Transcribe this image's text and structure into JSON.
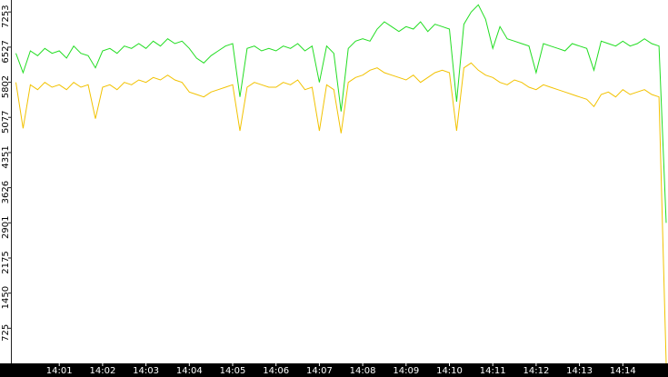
{
  "chart_data": {
    "type": "line",
    "categories": [
      null,
      null,
      null,
      null,
      null,
      null,
      "14:01",
      null,
      null,
      null,
      null,
      null,
      "14:02",
      null,
      null,
      null,
      null,
      null,
      "14:03",
      null,
      null,
      null,
      null,
      null,
      "14:04",
      null,
      null,
      null,
      null,
      null,
      "14:05",
      null,
      null,
      null,
      null,
      null,
      "14:06",
      null,
      null,
      null,
      null,
      null,
      "14:07",
      null,
      null,
      null,
      null,
      null,
      "14:08",
      null,
      null,
      null,
      null,
      null,
      "14:09",
      null,
      null,
      null,
      null,
      null,
      "14:10",
      null,
      null,
      null,
      null,
      null,
      "14:11",
      null,
      null,
      null,
      null,
      null,
      "14:12",
      null,
      null,
      null,
      null,
      null,
      "14:13",
      null,
      null,
      null,
      null,
      null,
      "14:14",
      null,
      null,
      null,
      null,
      null,
      null
    ],
    "series": [
      {
        "color": "#22dd22",
        "values": [
          6400,
          6000,
          6450,
          6350,
          6500,
          6400,
          6450,
          6300,
          6550,
          6400,
          6350,
          6100,
          6450,
          6500,
          6400,
          6550,
          6500,
          6600,
          6500,
          6650,
          6550,
          6700,
          6600,
          6650,
          6500,
          6300,
          6200,
          6350,
          6450,
          6550,
          6600,
          5500,
          6500,
          6550,
          6450,
          6500,
          6450,
          6550,
          6500,
          6600,
          6450,
          6550,
          5800,
          6550,
          6400,
          5200,
          6500,
          6650,
          6700,
          6650,
          6900,
          7050,
          6950,
          6850,
          6950,
          6900,
          7050,
          6850,
          7000,
          6950,
          6900,
          5400,
          7000,
          7250,
          7400,
          7100,
          6500,
          6950,
          6700,
          6650,
          6600,
          6550,
          6000,
          6600,
          6550,
          6500,
          6450,
          6600,
          6550,
          6500,
          6050,
          6650,
          6600,
          6550,
          6650,
          6550,
          6600,
          6700,
          6600,
          6550,
          2900
        ]
      },
      {
        "color": "#f2c200",
        "values": [
          5800,
          4850,
          5750,
          5650,
          5800,
          5700,
          5750,
          5650,
          5800,
          5700,
          5750,
          5050,
          5700,
          5750,
          5650,
          5800,
          5750,
          5850,
          5800,
          5900,
          5850,
          5950,
          5850,
          5800,
          5600,
          5550,
          5500,
          5600,
          5650,
          5700,
          5750,
          4800,
          5700,
          5800,
          5750,
          5700,
          5700,
          5800,
          5750,
          5850,
          5650,
          5700,
          4800,
          5750,
          5650,
          4750,
          5800,
          5900,
          5950,
          6050,
          6100,
          6000,
          5950,
          5900,
          5850,
          5950,
          5800,
          5900,
          6000,
          6050,
          6000,
          4800,
          6100,
          6200,
          6050,
          5950,
          5900,
          5800,
          5750,
          5850,
          5800,
          5700,
          5650,
          5750,
          5700,
          5650,
          5600,
          5550,
          5500,
          5450,
          5300,
          5550,
          5600,
          5500,
          5650,
          5550,
          5600,
          5650,
          5550,
          5500,
          0
        ]
      }
    ],
    "ylim": [
      0,
      7500
    ],
    "yticks": [
      725,
      1450,
      2175,
      2901,
      3626,
      4351,
      5077,
      5802,
      6527,
      7253
    ]
  }
}
